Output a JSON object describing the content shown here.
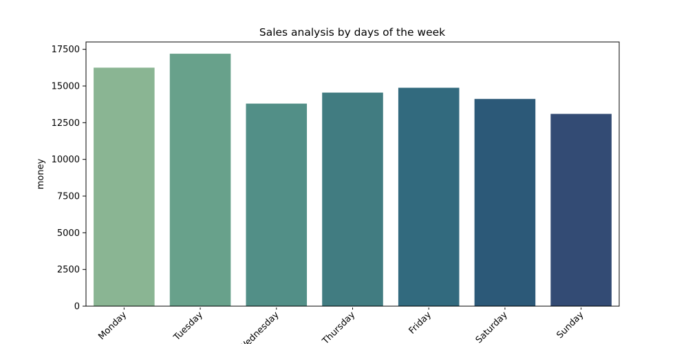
{
  "chart_data": {
    "type": "bar",
    "title": "Sales analysis by days of the week",
    "xlabel": "",
    "ylabel": "money",
    "categories": [
      "Monday",
      "Tuesday",
      "Wednesday",
      "Thursday",
      "Friday",
      "Saturday",
      "Sunday"
    ],
    "values": [
      16250,
      17200,
      13800,
      14550,
      14880,
      14120,
      13100
    ],
    "ylim": [
      0,
      18000
    ],
    "yticks": [
      "0",
      "2500",
      "5000",
      "7500",
      "10000",
      "12500",
      "15000",
      "17500"
    ],
    "grid": false,
    "legend": "none",
    "colors": [
      "#8ab593",
      "#68a18b",
      "#528f87",
      "#417c81",
      "#326a7e",
      "#2c5978",
      "#334b74"
    ]
  }
}
